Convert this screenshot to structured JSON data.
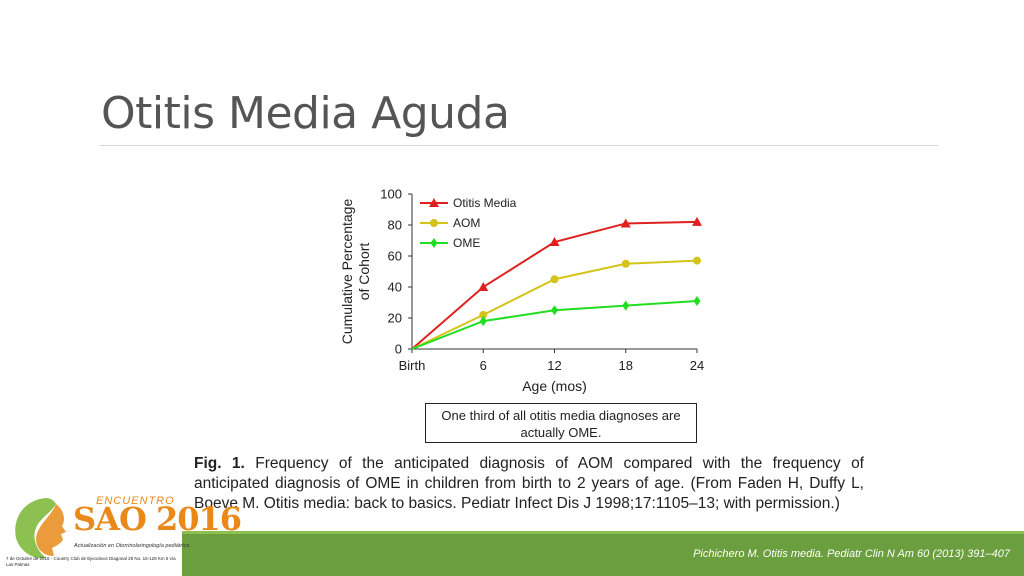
{
  "slide": {
    "title": "Otitis Media Aguda"
  },
  "note": "One third of all otitis media diagnoses are actually OME.",
  "caption": {
    "label": "Fig. 1.",
    "text": "Frequency of the anticipated diagnosis of AOM compared with the frequency of anticipated diagnosis of OME in children from birth to 2 years of age. (From Faden H, Duffy L, Boeve M. Otitis media: back to basics. Pediatr Infect Dis J 1998;17:1105–13; with permission.)"
  },
  "footer": {
    "citation": "Pichichero M. Otitis media. Pediatr Clin N Am 60 (2013) 391–407"
  },
  "logo": {
    "top": "ENCUENTRO",
    "main": "SAO 2016",
    "sub": "Actualización en Otorrinolaringología pediátrica",
    "date": "7 de Octubre de 2016 · Country Club de Ejecutivos Diagonal 28 No. 16-129 Km 5 vía Las Palmas"
  },
  "chart_data": {
    "type": "line",
    "categories": [
      "Birth",
      "6",
      "12",
      "18",
      "24"
    ],
    "xlabel": "Age (mos)",
    "ylabel": "Cumulative Percentage of Cohort",
    "ylim": [
      0,
      100
    ],
    "yticks": [
      "0",
      "20",
      "40",
      "60",
      "80",
      "100"
    ],
    "legend_position": "top-left",
    "grid": false,
    "series": [
      {
        "name": "Otitis Media",
        "color": "#e02020",
        "marker": "triangle",
        "values": [
          0,
          40,
          69,
          81,
          82
        ]
      },
      {
        "name": "AOM",
        "color": "#d4c41a",
        "marker": "circle",
        "values": [
          0,
          22,
          45,
          55,
          57
        ]
      },
      {
        "name": "OME",
        "color": "#22dd22",
        "marker": "diamond",
        "values": [
          0,
          18,
          25,
          28,
          31
        ]
      }
    ]
  }
}
